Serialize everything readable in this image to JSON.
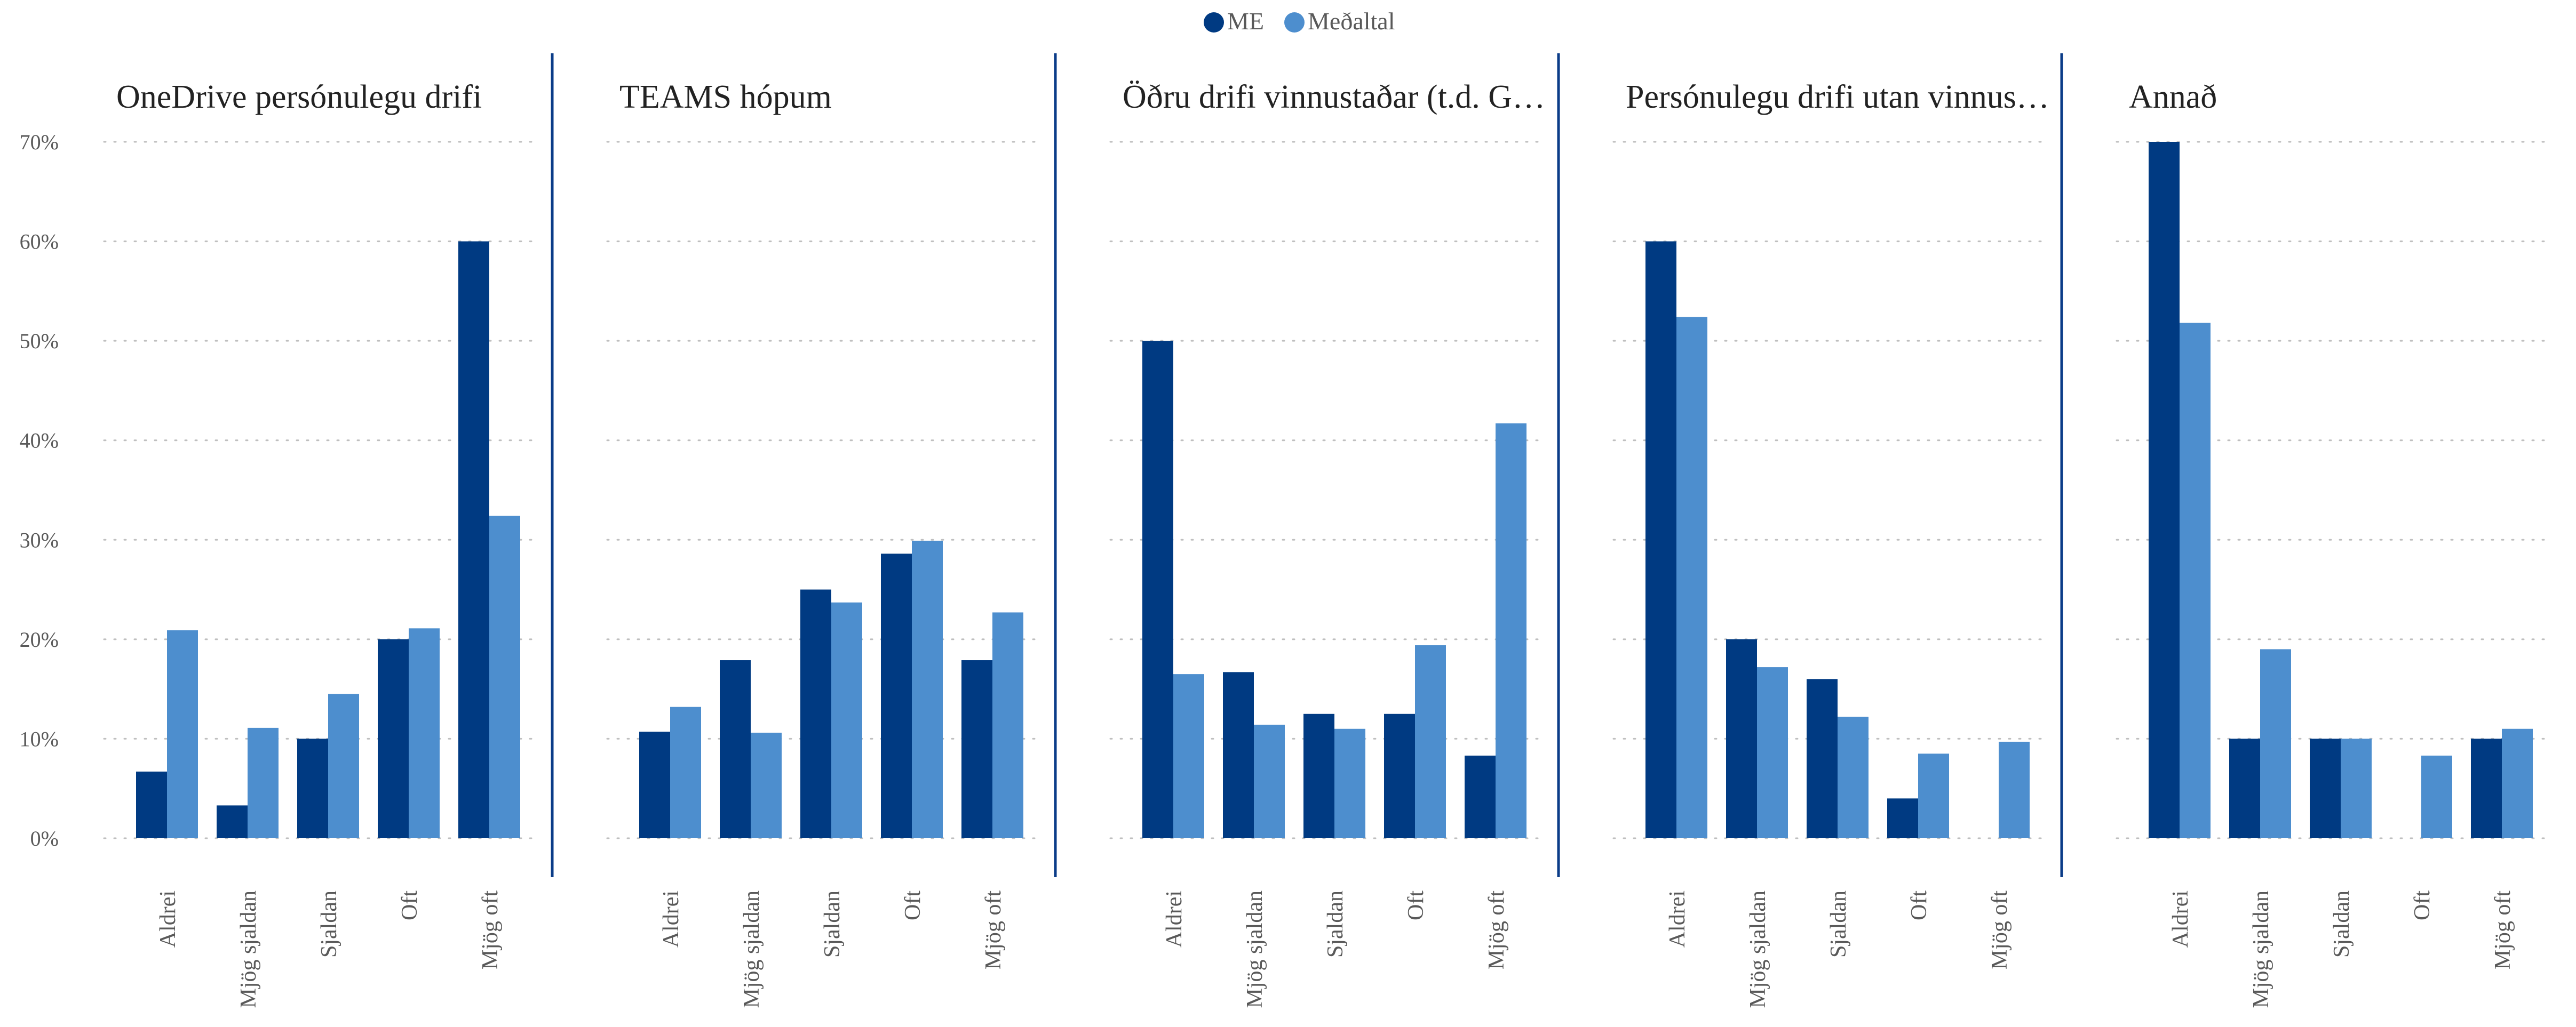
{
  "legend": {
    "placement": "top-center",
    "items": [
      {
        "label": "ME",
        "color": "#003A82",
        "icon": "circle"
      },
      {
        "label": "Meðaltal",
        "color": "#4D8ECE",
        "icon": "circle"
      }
    ]
  },
  "colors": {
    "me": "#003A82",
    "average": "#4D8ECE",
    "divider": "#0B3C88",
    "grid": "#BFBFBF",
    "text": "#595959",
    "title": "#222222"
  },
  "chart_data": [
    {
      "type": "bar",
      "title": "OneDrive persónulegu drifi",
      "categories": [
        "Aldrei",
        "Mjög sjaldan",
        "Sjaldan",
        "Oft",
        "Mjög oft"
      ],
      "series": [
        {
          "name": "ME",
          "values": [
            6.7,
            3.3,
            10.0,
            20.0,
            60.0
          ]
        },
        {
          "name": "Meðaltal",
          "values": [
            20.9,
            11.1,
            14.5,
            21.1,
            32.4
          ]
        }
      ],
      "ylim": [
        0,
        70
      ],
      "yticks": [
        "0%",
        "10%",
        "20%",
        "30%",
        "40%",
        "50%",
        "60%",
        "70%"
      ],
      "grid": true
    },
    {
      "type": "bar",
      "title": "TEAMS hópum",
      "categories": [
        "Aldrei",
        "Mjög sjaldan",
        "Sjaldan",
        "Oft",
        "Mjög oft"
      ],
      "series": [
        {
          "name": "ME",
          "values": [
            10.7,
            17.9,
            25.0,
            28.6,
            17.9
          ]
        },
        {
          "name": "Meðaltal",
          "values": [
            13.2,
            10.6,
            23.7,
            29.9,
            22.7
          ]
        }
      ],
      "ylim": [
        0,
        70
      ],
      "grid": true
    },
    {
      "type": "bar",
      "title": "Öðru drifi vinnustaðar (t.d. G…",
      "categories": [
        "Aldrei",
        "Mjög sjaldan",
        "Sjaldan",
        "Oft",
        "Mjög oft"
      ],
      "series": [
        {
          "name": "ME",
          "values": [
            50.0,
            16.7,
            12.5,
            12.5,
            8.3
          ]
        },
        {
          "name": "Meðaltal",
          "values": [
            16.5,
            11.4,
            11.0,
            19.4,
            41.7
          ]
        }
      ],
      "ylim": [
        0,
        70
      ],
      "grid": true
    },
    {
      "type": "bar",
      "title": "Persónulegu drifi utan vinnus…",
      "categories": [
        "Aldrei",
        "Mjög sjaldan",
        "Sjaldan",
        "Oft",
        "Mjög oft"
      ],
      "series": [
        {
          "name": "ME",
          "values": [
            60.0,
            20.0,
            16.0,
            4.0,
            0
          ]
        },
        {
          "name": "Meðaltal",
          "values": [
            52.4,
            17.2,
            12.2,
            8.5,
            9.7
          ]
        }
      ],
      "ylim": [
        0,
        70
      ],
      "grid": true
    },
    {
      "type": "bar",
      "title": "Annað",
      "categories": [
        "Aldrei",
        "Mjög sjaldan",
        "Sjaldan",
        "Oft",
        "Mjög oft"
      ],
      "series": [
        {
          "name": "ME",
          "values": [
            70.0,
            10.0,
            10.0,
            0,
            10.0
          ]
        },
        {
          "name": "Meðaltal",
          "values": [
            51.8,
            19.0,
            10.0,
            8.3,
            11.0
          ]
        }
      ],
      "ylim": [
        0,
        70
      ],
      "grid": true
    }
  ]
}
